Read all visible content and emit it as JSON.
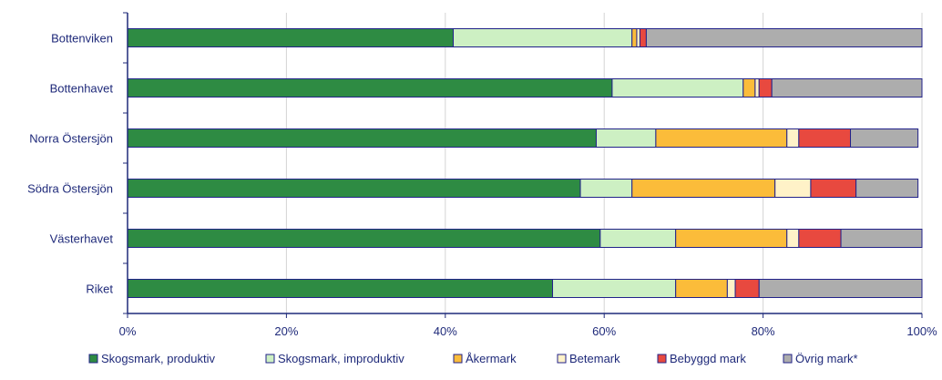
{
  "chart_data": {
    "type": "bar",
    "orientation": "horizontal",
    "stacked": true,
    "normalized_percent": true,
    "categories": [
      "Bottenviken",
      "Bottenhavet",
      "Norra Östersjön",
      "Södra Östersjön",
      "Västerhavet",
      "Riket"
    ],
    "series": [
      {
        "name": "Skogsmark, produktiv",
        "color": "#2e8b43",
        "values": [
          41,
          61,
          59,
          57,
          59.5,
          53.5
        ]
      },
      {
        "name": "Skogsmark, improduktiv",
        "color": "#cdf0c3",
        "values": [
          22.5,
          16.5,
          7.5,
          6.5,
          9.5,
          15.5
        ]
      },
      {
        "name": "Åkermark",
        "color": "#fbbc3a",
        "values": [
          0.6,
          1.5,
          16.5,
          18,
          14,
          6.5
        ]
      },
      {
        "name": "Betemark",
        "color": "#fff2c8",
        "values": [
          0.4,
          0.5,
          1.5,
          4.5,
          1.5,
          1.0
        ]
      },
      {
        "name": "Bebyggd mark",
        "color": "#e8493f",
        "values": [
          0.8,
          1.6,
          6.5,
          5.7,
          5.3,
          3.0
        ]
      },
      {
        "name": "Övrig mark*",
        "color": "#adadad",
        "values": [
          34.7,
          18.9,
          8.5,
          7.8,
          10.2,
          20.5
        ]
      }
    ],
    "xlim": [
      0,
      100
    ],
    "x_ticks": [
      "0%",
      "20%",
      "40%",
      "60%",
      "80%",
      "100%"
    ],
    "grid": true,
    "legend_position": "bottom",
    "title": "",
    "xlabel": "",
    "ylabel": "",
    "bar_border_color": "#22228a",
    "axis_color": "#1f2a7a"
  }
}
